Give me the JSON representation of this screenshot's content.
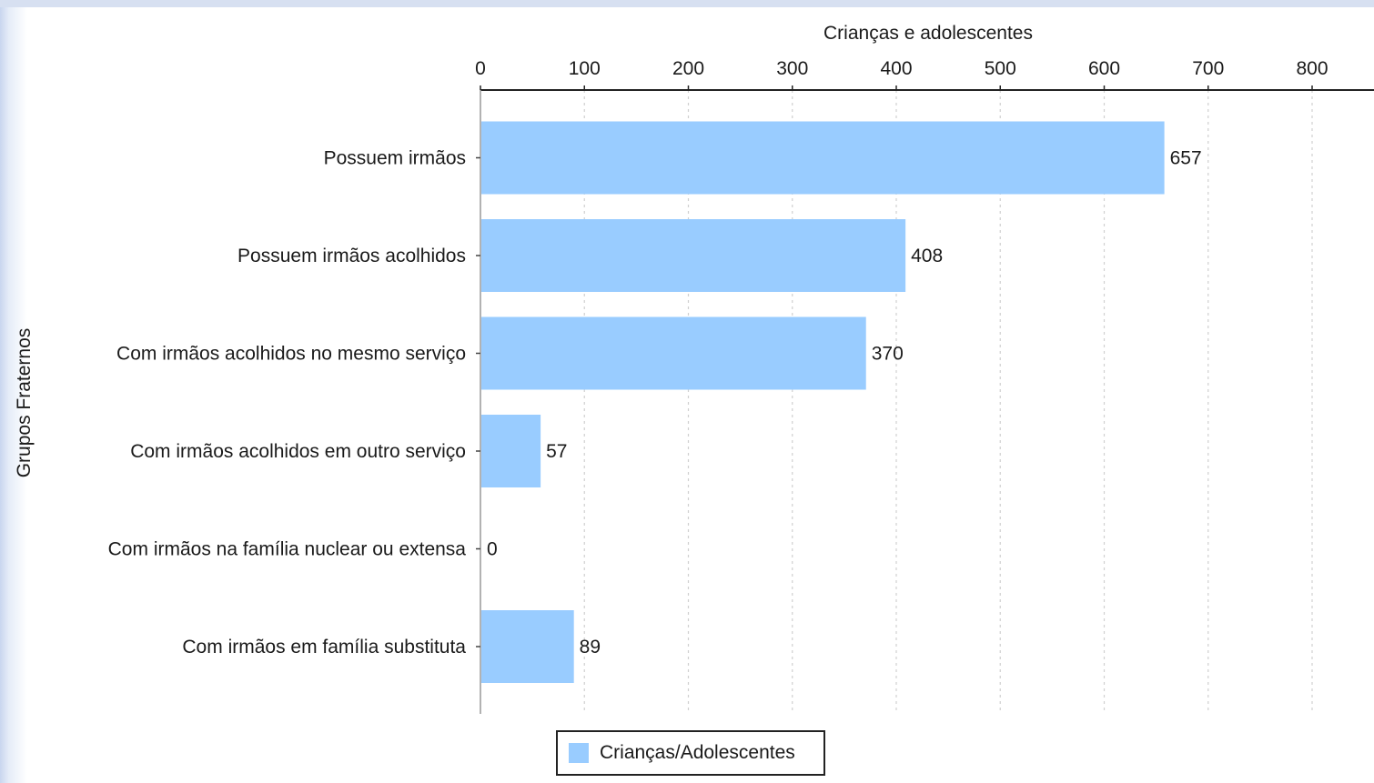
{
  "chart_data": {
    "type": "bar",
    "orientation": "horizontal",
    "title": "",
    "xlabel": "Crianças e adolescentes",
    "ylabel": "Grupos Fraternos",
    "categories": [
      "Possuem irmãos",
      "Possuem irmãos acolhidos",
      "Com irmãos acolhidos no mesmo serviço",
      "Com irmãos acolhidos em outro serviço",
      "Com irmãos na família nuclear ou extensa",
      "Com irmãos em família substituta"
    ],
    "series": [
      {
        "name": "Crianças/Adolescentes",
        "values": [
          657,
          408,
          370,
          57,
          0,
          89
        ],
        "color": "#99ccff"
      }
    ],
    "data_labels": [
      "657",
      "408",
      "370",
      "57",
      "0",
      "89"
    ],
    "xlim": [
      0,
      800
    ],
    "xticks": [
      0,
      100,
      200,
      300,
      400,
      500,
      600,
      700,
      800
    ],
    "x_axis_position": "top",
    "grid": "vertical dashed",
    "legend": {
      "placement": "bottom-center",
      "label": "Crianças/Adolescentes"
    }
  }
}
